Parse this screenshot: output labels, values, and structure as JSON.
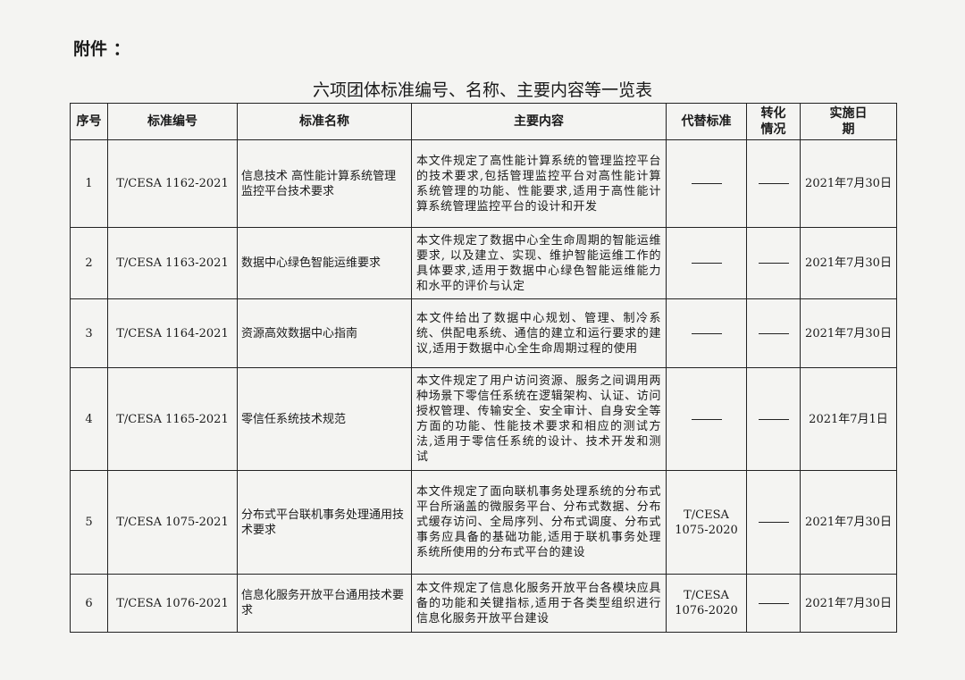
{
  "attachment_label": "附件 ：",
  "title": "六项团体标准编号、名称、主要内容等一览表",
  "table": {
    "headers": [
      "序号",
      "标准编号",
      "标准名称",
      "主要内容",
      "代替标准",
      "转化情况",
      "实施日期"
    ],
    "rows": [
      {
        "no": "1",
        "code": "T/CESA 1162-2021",
        "name": "信息技术 高性能计算系统管理监控平台技术要求",
        "content": "本文件规定了高性能计算系统的管理监控平台的技术要求,包括管理监控平台对高性能计算系统管理的功能、性能要求,适用于高性能计算系统管理监控平台的设计和开发",
        "replaces": "",
        "conversion": "",
        "date": "2021年7月30日"
      },
      {
        "no": "2",
        "code": "T/CESA 1163-2021",
        "name": "数据中心绿色智能运维要求",
        "content": "本文件规定了数据中心全生命周期的智能运维要求, 以及建立、实现、维护智能运维工作的具体要求,适用于数据中心绿色智能运维能力和水平的评价与认定",
        "replaces": "",
        "conversion": "",
        "date": "2021年7月30日"
      },
      {
        "no": "3",
        "code": "T/CESA 1164-2021",
        "name": "资源高效数据中心指南",
        "content": "本文件给出了数据中心规划、管理、制冷系统、供配电系统、通信的建立和运行要求的建议,适用于数据中心全生命周期过程的使用",
        "replaces": "",
        "conversion": "",
        "date": "2021年7月30日"
      },
      {
        "no": "4",
        "code": "T/CESA 1165-2021",
        "name": "零信任系统技术规范",
        "content": "本文件规定了用户访问资源、服务之间调用两种场景下零信任系统在逻辑架构、认证、访问授权管理、传输安全、安全审计、自身安全等方面的功能、性能技术要求和相应的测试方法,适用于零信任系统的设计、技术开发和测试",
        "replaces": "",
        "conversion": "",
        "date": "2021年7月1日"
      },
      {
        "no": "5",
        "code": "T/CESA 1075-2021",
        "name": "分布式平台联机事务处理通用技术要求",
        "content": "本文件规定了面向联机事务处理系统的分布式平台所涵盖的微服务平台、分布式数据、分布式缓存访问、全局序列、分布式调度、分布式事务应具备的基础功能,适用于联机事务处理系统所使用的分布式平台的建设",
        "replaces": "T/CESA 1075-2020",
        "conversion": "",
        "date": "2021年7月30日"
      },
      {
        "no": "6",
        "code": "T/CESA 1076-2021",
        "name": "信息化服务开放平台通用技术要求",
        "content": "本文件规定了信息化服务开放平台各模块应具备的功能和关键指标,适用于各类型组织进行信息化服务开放平台建设",
        "replaces": "T/CESA 1076-2020",
        "conversion": "",
        "date": "2021年7月30日"
      }
    ]
  }
}
